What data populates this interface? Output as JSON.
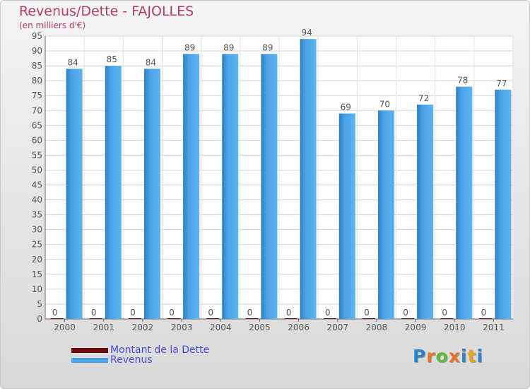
{
  "title": "Revenus/Dette - FAJOLLES",
  "subtitle": "(en milliers d'€)",
  "logo": {
    "text": "Proxiti",
    "colors": [
      "#2e86c8",
      "#e8742a",
      "#5fb83b",
      "#e8742a",
      "#2e86c8",
      "#e8a21e",
      "#2e86c8"
    ]
  },
  "chart_data": {
    "type": "bar",
    "categories": [
      "2000",
      "2001",
      "2002",
      "2003",
      "2004",
      "2005",
      "2006",
      "2007",
      "2008",
      "2009",
      "2010",
      "2011"
    ],
    "series": [
      {
        "name": "Montant de la Dette",
        "values": [
          0,
          0,
          0,
          0,
          0,
          0,
          0,
          0,
          0,
          0,
          0,
          0
        ],
        "color": "#6b0a0a"
      },
      {
        "name": "Revenus",
        "values": [
          84,
          85,
          84,
          89,
          89,
          89,
          94,
          69,
          70,
          72,
          78,
          77
        ],
        "color": "#4aa3e6"
      }
    ],
    "yticks": [
      "0",
      "5",
      "10",
      "15",
      "20",
      "25",
      "30",
      "35",
      "40",
      "45",
      "50",
      "55",
      "60",
      "65",
      "70",
      "75",
      "80",
      "85",
      "90",
      "95"
    ],
    "ylim": [
      0,
      95
    ],
    "grid": true,
    "legend_position": "bottom-left"
  }
}
